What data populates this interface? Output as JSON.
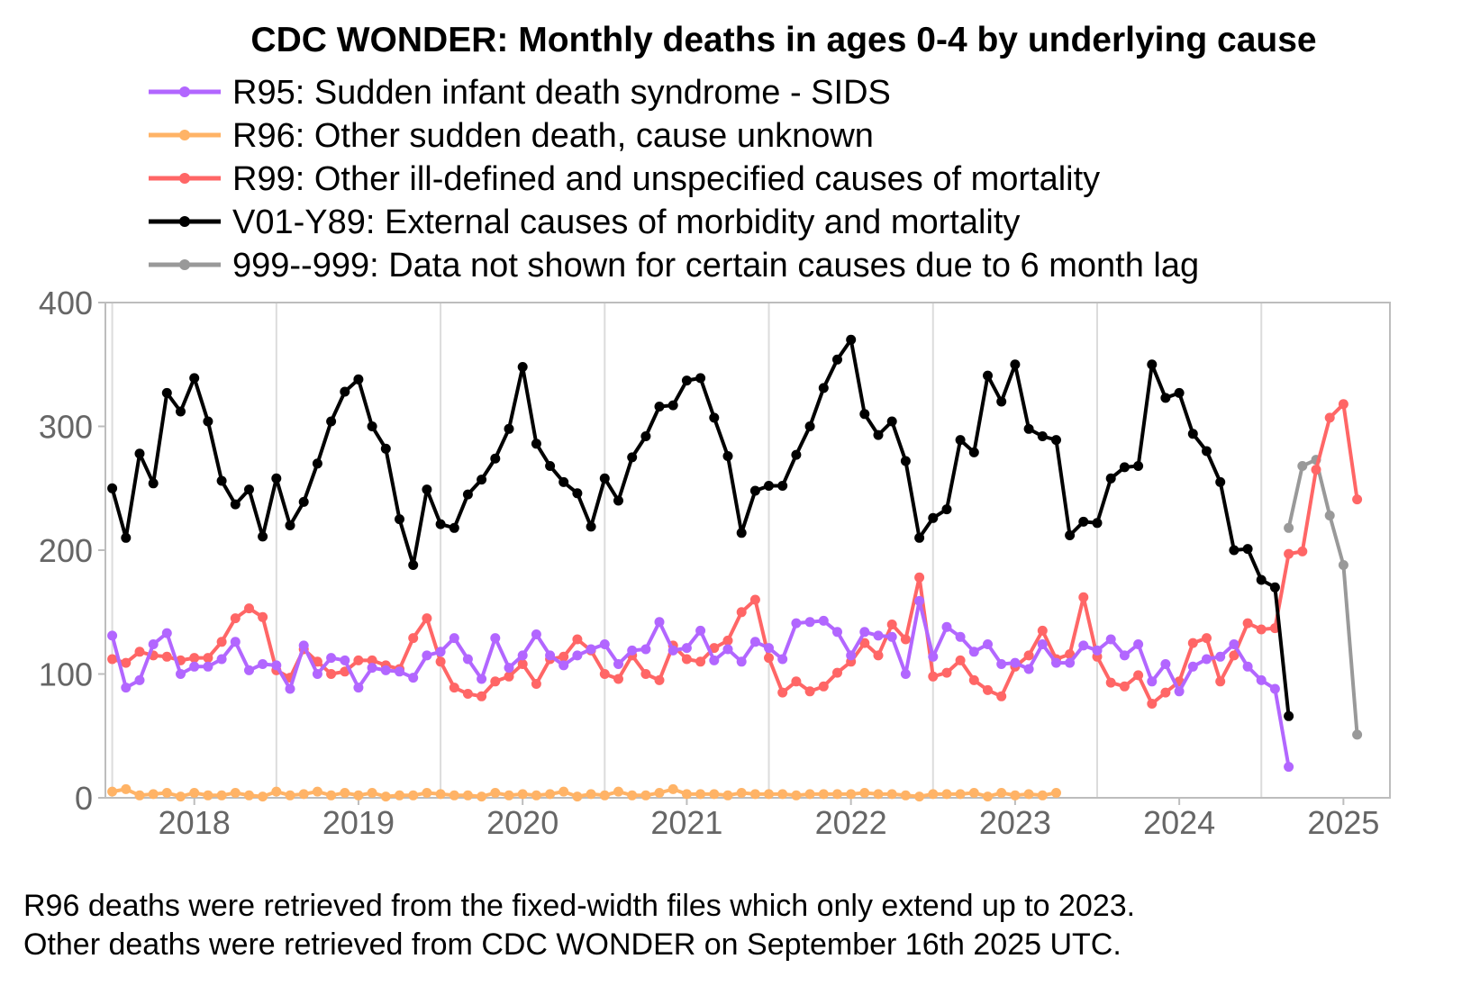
{
  "chart_data": {
    "type": "line",
    "title": "CDC WONDER: Monthly deaths in ages 0-4 by underlying cause",
    "xlabel": "",
    "ylabel": "",
    "x_range": [
      "2017-12",
      "2025-10"
    ],
    "ylim": [
      0,
      400
    ],
    "yticks": [
      "0",
      "100",
      "200",
      "300",
      "400"
    ],
    "xticks": [
      "2018",
      "2019",
      "2020",
      "2021",
      "2022",
      "2023",
      "2024",
      "2025"
    ],
    "grid": "vertical lines at year boundaries",
    "legend_position": "top",
    "series": [
      {
        "name": "R95: Sudden infant death syndrome - SIDS",
        "color": "#b266ff",
        "start": "2018-01",
        "values": [
          131,
          89,
          95,
          124,
          133,
          100,
          106,
          106,
          112,
          126,
          103,
          108,
          107,
          88,
          123,
          100,
          113,
          111,
          89,
          105,
          103,
          102,
          97,
          115,
          118,
          129,
          112,
          96,
          129,
          105,
          115,
          132,
          115,
          107,
          115,
          120,
          124,
          108,
          119,
          120,
          142,
          119,
          121,
          135,
          111,
          120,
          110,
          126,
          121,
          112,
          141,
          142,
          143,
          134,
          115,
          134,
          131,
          130,
          100,
          159,
          114,
          138,
          130,
          118,
          124,
          108,
          109,
          104,
          124,
          109,
          109,
          123,
          119,
          128,
          115,
          124,
          94,
          108,
          86,
          106,
          112,
          114,
          124,
          106,
          95,
          88,
          25
        ]
      },
      {
        "name": "R96: Other sudden death, cause unknown",
        "color": "#ffb366",
        "start": "2018-01",
        "values": [
          5,
          7,
          2,
          3,
          4,
          1,
          4,
          2,
          2,
          4,
          2,
          1,
          5,
          2,
          3,
          5,
          2,
          4,
          2,
          4,
          1,
          2,
          2,
          4,
          3,
          2,
          2,
          1,
          4,
          2,
          3,
          2,
          3,
          5,
          1,
          3,
          2,
          5,
          2,
          2,
          4,
          7,
          3,
          3,
          3,
          2,
          4,
          3,
          3,
          3,
          2,
          3,
          3,
          3,
          3,
          4,
          3,
          3,
          2,
          1,
          3,
          3,
          3,
          4,
          1,
          4,
          2,
          3,
          2,
          4
        ]
      },
      {
        "name": "R99: Other ill-defined and unspecified causes of mortality",
        "color": "#ff6666",
        "start": "2018-01",
        "values": [
          112,
          109,
          118,
          115,
          114,
          111,
          113,
          113,
          126,
          145,
          153,
          146,
          103,
          97,
          120,
          110,
          100,
          102,
          111,
          111,
          107,
          104,
          129,
          145,
          110,
          89,
          84,
          82,
          94,
          98,
          108,
          92,
          112,
          114,
          128,
          119,
          100,
          96,
          115,
          100,
          95,
          123,
          112,
          110,
          121,
          127,
          150,
          160,
          113,
          85,
          94,
          86,
          90,
          101,
          110,
          125,
          115,
          140,
          128,
          178,
          98,
          101,
          111,
          95,
          87,
          82,
          106,
          115,
          135,
          112,
          116,
          162,
          114,
          93,
          90,
          99,
          76,
          85,
          94,
          125,
          129,
          94,
          115,
          141,
          136,
          137,
          197,
          199,
          265,
          307,
          318,
          241
        ]
      },
      {
        "name": "V01-Y89: External causes of morbidity and mortality",
        "color": "#000000",
        "start": "2018-01",
        "values": [
          250,
          210,
          278,
          254,
          327,
          312,
          339,
          304,
          256,
          237,
          249,
          211,
          258,
          220,
          239,
          270,
          304,
          328,
          338,
          300,
          282,
          225,
          188,
          249,
          221,
          218,
          245,
          257,
          274,
          298,
          348,
          286,
          268,
          255,
          246,
          219,
          258,
          240,
          275,
          292,
          316,
          317,
          337,
          339,
          307,
          276,
          214,
          248,
          252,
          252,
          277,
          300,
          331,
          354,
          370,
          310,
          293,
          304,
          272,
          210,
          226,
          233,
          289,
          279,
          341,
          320,
          350,
          298,
          292,
          289,
          212,
          223,
          222,
          258,
          267,
          268,
          350,
          323,
          327,
          294,
          280,
          255,
          200,
          201,
          176,
          170,
          66
        ]
      },
      {
        "name": "999--999: Data not shown for certain causes due to 6 month lag",
        "color": "#999999",
        "start": "2025-03",
        "values": [
          218,
          268,
          273,
          228,
          188,
          51
        ]
      }
    ]
  },
  "footnote": {
    "line1": "R96 deaths were retrieved from the fixed-width files which only extend up to 2023.",
    "line2": "Other deaths were retrieved from CDC WONDER on September 16th 2025 UTC."
  }
}
